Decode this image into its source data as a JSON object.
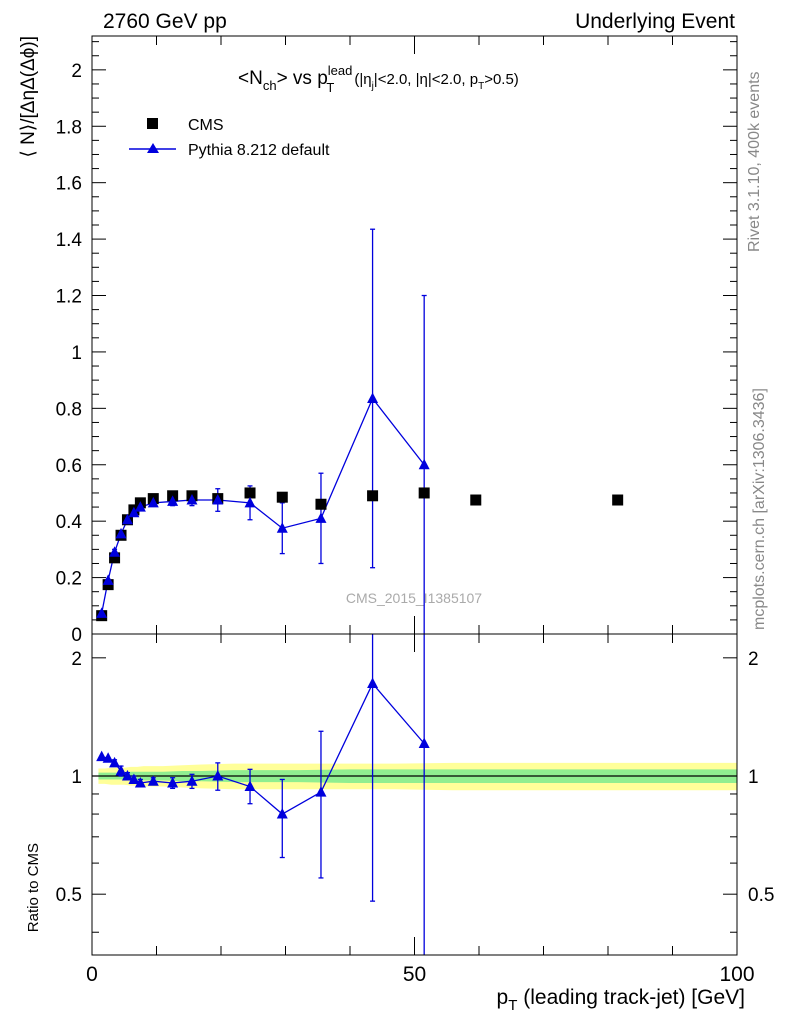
{
  "header": {
    "left": "2760 GeV pp",
    "right": "Underlying Event"
  },
  "title": {
    "main": "<N",
    "main_sub": "ch",
    "vs": "> vs p",
    "p_sup": "lead",
    "p_sub": "T",
    "cuts": "(|η",
    "cuts_sub": "j",
    "cuts2": "|<2.0, |η|<2.0, p",
    "cuts_sub2": "T",
    "cuts3": ">0.5)"
  },
  "side_labels": {
    "rivet": "Rivet 3.1.10,  400k events",
    "mcplots": "mcplots.cern.ch [arXiv:1306.3436]"
  },
  "analysis_ref": "CMS_2015_I1385107",
  "axes": {
    "ylabel_top": "⟨ N⟩/[ΔηΔ(Δϕ)]",
    "ylabel_bottom": "Ratio to CMS",
    "xlabel_main": "p",
    "xlabel_sub": "T",
    "xlabel_rest": " (leading track-jet) [GeV]"
  },
  "legend": {
    "cms": "CMS",
    "mc": "Pythia 8.212 default"
  },
  "colors": {
    "mc": "#0000dd",
    "data": "#000000",
    "band_inner": "#90ee90",
    "band_outer": "#ffff99"
  },
  "chart_data": [
    {
      "type": "scatter",
      "panel": "main",
      "x_range": [
        0,
        100
      ],
      "y_range": [
        0,
        2.12
      ],
      "y_ticks": [
        "0",
        "0.2",
        "0.4",
        "0.6",
        "0.8",
        "1",
        "1.2",
        "1.4",
        "1.6",
        "1.8",
        "2"
      ],
      "x_ticks": [
        "0",
        "50",
        "100"
      ],
      "series": [
        {
          "name": "CMS",
          "x": [
            1.5,
            2.5,
            3.5,
            4.5,
            5.5,
            6.5,
            7.5,
            9.5,
            12.5,
            15.5,
            19.5,
            24.5,
            29.5,
            35.5,
            43.5,
            51.5,
            59.5,
            81.5
          ],
          "y": [
            0.065,
            0.175,
            0.27,
            0.35,
            0.405,
            0.44,
            0.465,
            0.48,
            0.49,
            0.49,
            0.48,
            0.5,
            0.485,
            0.46,
            0.49,
            0.5,
            0.475,
            0.475
          ]
        },
        {
          "name": "Pythia 8.212 default",
          "x": [
            1.5,
            2.5,
            3.5,
            4.5,
            5.5,
            6.5,
            7.5,
            9.5,
            12.5,
            15.5,
            19.5,
            24.5,
            29.5,
            35.5,
            43.5,
            51.5
          ],
          "y": [
            0.073,
            0.19,
            0.29,
            0.355,
            0.405,
            0.43,
            0.45,
            0.465,
            0.47,
            0.475,
            0.475,
            0.465,
            0.375,
            0.41,
            0.835,
            0.6
          ],
          "err": [
            0,
            0,
            0.01,
            0.01,
            0.01,
            0.01,
            0.01,
            0.01,
            0.015,
            0.02,
            0.04,
            0.06,
            0.09,
            0.16,
            0.6,
            0.6
          ]
        }
      ]
    },
    {
      "type": "line",
      "panel": "ratio",
      "y_range": [
        0.35,
        2.3
      ],
      "y_scale": "log",
      "y_ticks": [
        "0.5",
        "1",
        "2"
      ],
      "series": [
        {
          "name": "Pythia 8.212 default",
          "x": [
            1.5,
            2.5,
            3.5,
            4.5,
            5.5,
            6.5,
            7.5,
            9.5,
            12.5,
            15.5,
            19.5,
            24.5,
            29.5,
            35.5,
            43.5,
            51.5
          ],
          "y": [
            1.12,
            1.11,
            1.08,
            1.03,
            1.0,
            0.98,
            0.96,
            0.97,
            0.96,
            0.97,
            1.0,
            0.94,
            0.8,
            0.91,
            1.72,
            1.21
          ],
          "lo": [
            1.12,
            1.11,
            1.06,
            1.0,
            0.98,
            0.96,
            0.94,
            0.95,
            0.93,
            0.93,
            0.92,
            0.85,
            0.62,
            0.55,
            0.48,
            0.3
          ],
          "hi": [
            1.12,
            1.11,
            1.1,
            1.06,
            1.02,
            1.0,
            0.98,
            0.99,
            0.99,
            1.01,
            1.08,
            1.04,
            0.98,
            1.3,
            2.3,
            2.3
          ]
        }
      ],
      "band": {
        "x": [
          1,
          2,
          3,
          4,
          5,
          6,
          7,
          8,
          11,
          14,
          17,
          22,
          27,
          32,
          40,
          47,
          56,
          66,
          100
        ],
        "inner_half": [
          0.02,
          0.02,
          0.02,
          0.02,
          0.02,
          0.025,
          0.025,
          0.025,
          0.025,
          0.03,
          0.03,
          0.035,
          0.035,
          0.035,
          0.04,
          0.04,
          0.04,
          0.04,
          0.04
        ],
        "outer_half": [
          0.045,
          0.045,
          0.05,
          0.05,
          0.05,
          0.055,
          0.055,
          0.06,
          0.06,
          0.065,
          0.07,
          0.075,
          0.075,
          0.075,
          0.075,
          0.075,
          0.08,
          0.08,
          0.08
        ]
      }
    }
  ]
}
